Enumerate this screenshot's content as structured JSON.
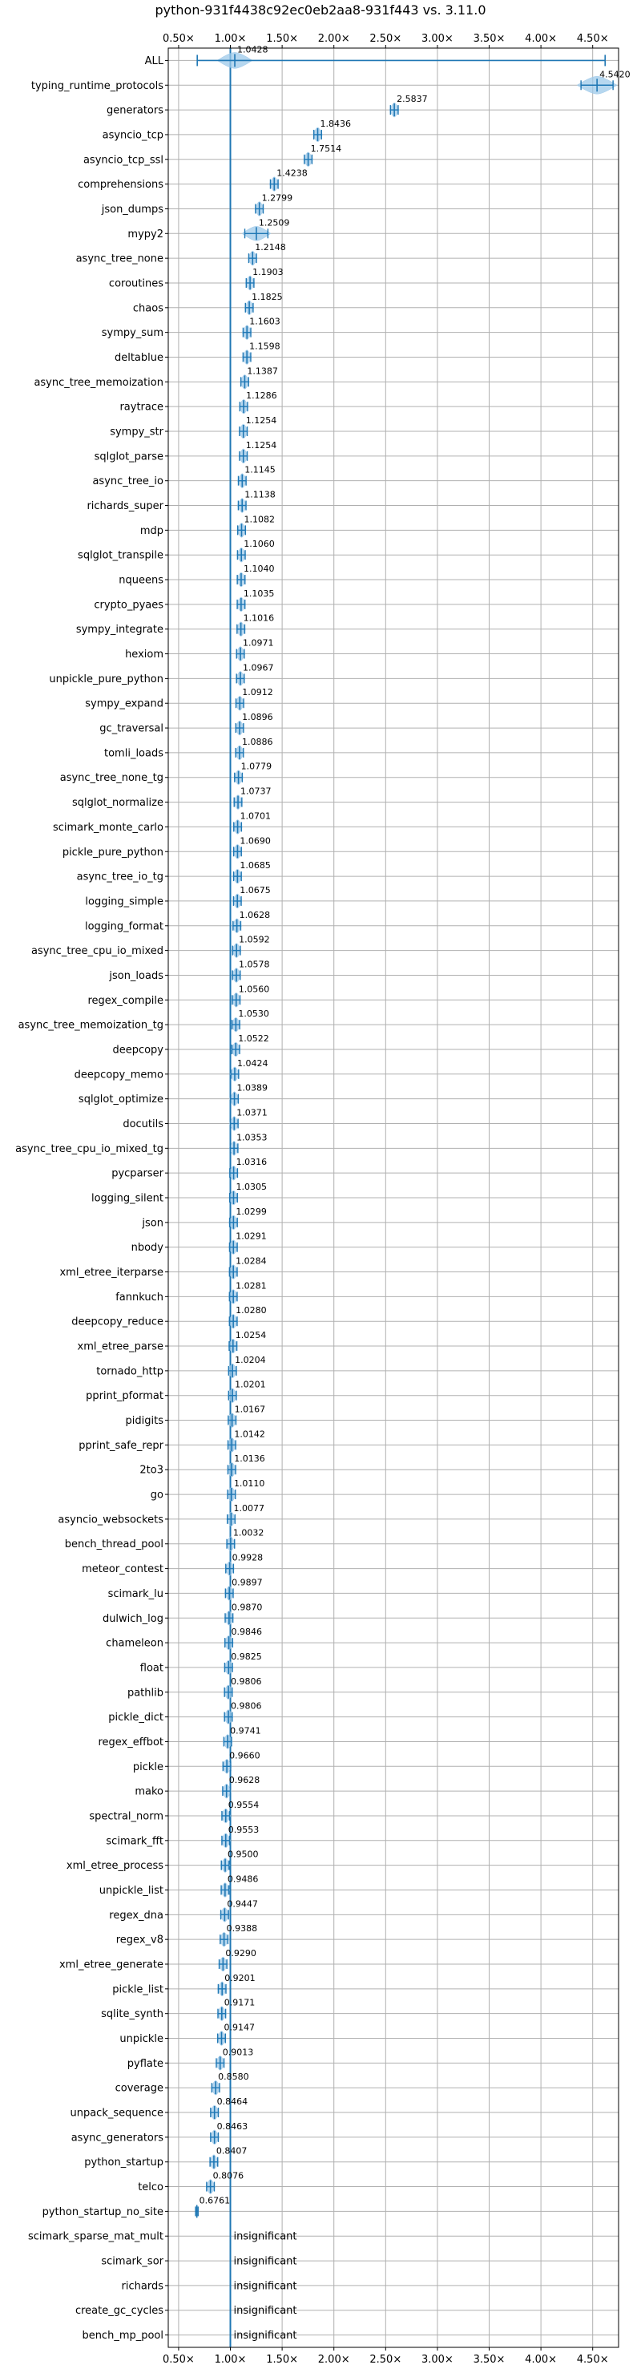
{
  "chart_data": {
    "type": "violin",
    "title": "python-931f4438c92ec0eb2aa8-931f443 vs. 3.11.0",
    "xlabel": "",
    "ylabel": "",
    "xlim": [
      0.4,
      4.75
    ],
    "x_ticks": [
      0.5,
      1.0,
      1.5,
      2.0,
      2.5,
      3.0,
      3.5,
      4.0,
      4.5
    ],
    "x_tick_labels": [
      "0.50×",
      "1.00×",
      "1.50×",
      "2.00×",
      "2.50×",
      "3.00×",
      "3.50×",
      "4.00×",
      "4.50×"
    ],
    "grid": true,
    "reference_line": 1.0,
    "insignificant_label": "insignificant",
    "benchmarks": [
      {
        "name": "ALL",
        "value": 1.0428,
        "label": "1.0428"
      },
      {
        "name": "typing_runtime_protocols",
        "value": 4.542,
        "label": "4.5420"
      },
      {
        "name": "generators",
        "value": 2.5837,
        "label": "2.5837"
      },
      {
        "name": "asyncio_tcp",
        "value": 1.8436,
        "label": "1.8436"
      },
      {
        "name": "asyncio_tcp_ssl",
        "value": 1.7514,
        "label": "1.7514"
      },
      {
        "name": "comprehensions",
        "value": 1.4238,
        "label": "1.4238"
      },
      {
        "name": "json_dumps",
        "value": 1.2799,
        "label": "1.2799"
      },
      {
        "name": "mypy2",
        "value": 1.2509,
        "label": "1.2509"
      },
      {
        "name": "async_tree_none",
        "value": 1.2148,
        "label": "1.2148"
      },
      {
        "name": "coroutines",
        "value": 1.1903,
        "label": "1.1903"
      },
      {
        "name": "chaos",
        "value": 1.1825,
        "label": "1.1825"
      },
      {
        "name": "sympy_sum",
        "value": 1.1603,
        "label": "1.1603"
      },
      {
        "name": "deltablue",
        "value": 1.1598,
        "label": "1.1598"
      },
      {
        "name": "async_tree_memoization",
        "value": 1.1387,
        "label": "1.1387"
      },
      {
        "name": "raytrace",
        "value": 1.1286,
        "label": "1.1286"
      },
      {
        "name": "sympy_str",
        "value": 1.1254,
        "label": "1.1254"
      },
      {
        "name": "sqlglot_parse",
        "value": 1.1254,
        "label": "1.1254"
      },
      {
        "name": "async_tree_io",
        "value": 1.1145,
        "label": "1.1145"
      },
      {
        "name": "richards_super",
        "value": 1.1138,
        "label": "1.1138"
      },
      {
        "name": "mdp",
        "value": 1.1082,
        "label": "1.1082"
      },
      {
        "name": "sqlglot_transpile",
        "value": 1.106,
        "label": "1.1060"
      },
      {
        "name": "nqueens",
        "value": 1.104,
        "label": "1.1040"
      },
      {
        "name": "crypto_pyaes",
        "value": 1.1035,
        "label": "1.1035"
      },
      {
        "name": "sympy_integrate",
        "value": 1.1016,
        "label": "1.1016"
      },
      {
        "name": "hexiom",
        "value": 1.0971,
        "label": "1.0971"
      },
      {
        "name": "unpickle_pure_python",
        "value": 1.0967,
        "label": "1.0967"
      },
      {
        "name": "sympy_expand",
        "value": 1.0912,
        "label": "1.0912"
      },
      {
        "name": "gc_traversal",
        "value": 1.0896,
        "label": "1.0896"
      },
      {
        "name": "tomli_loads",
        "value": 1.0886,
        "label": "1.0886"
      },
      {
        "name": "async_tree_none_tg",
        "value": 1.0779,
        "label": "1.0779"
      },
      {
        "name": "sqlglot_normalize",
        "value": 1.0737,
        "label": "1.0737"
      },
      {
        "name": "scimark_monte_carlo",
        "value": 1.0701,
        "label": "1.0701"
      },
      {
        "name": "pickle_pure_python",
        "value": 1.069,
        "label": "1.0690"
      },
      {
        "name": "async_tree_io_tg",
        "value": 1.0685,
        "label": "1.0685"
      },
      {
        "name": "logging_simple",
        "value": 1.0675,
        "label": "1.0675"
      },
      {
        "name": "logging_format",
        "value": 1.0628,
        "label": "1.0628"
      },
      {
        "name": "async_tree_cpu_io_mixed",
        "value": 1.0592,
        "label": "1.0592"
      },
      {
        "name": "json_loads",
        "value": 1.0578,
        "label": "1.0578"
      },
      {
        "name": "regex_compile",
        "value": 1.056,
        "label": "1.0560"
      },
      {
        "name": "async_tree_memoization_tg",
        "value": 1.053,
        "label": "1.0530"
      },
      {
        "name": "deepcopy",
        "value": 1.0522,
        "label": "1.0522"
      },
      {
        "name": "deepcopy_memo",
        "value": 1.0424,
        "label": "1.0424"
      },
      {
        "name": "sqlglot_optimize",
        "value": 1.0389,
        "label": "1.0389"
      },
      {
        "name": "docutils",
        "value": 1.0371,
        "label": "1.0371"
      },
      {
        "name": "async_tree_cpu_io_mixed_tg",
        "value": 1.0353,
        "label": "1.0353"
      },
      {
        "name": "pycparser",
        "value": 1.0316,
        "label": "1.0316"
      },
      {
        "name": "logging_silent",
        "value": 1.0305,
        "label": "1.0305"
      },
      {
        "name": "json",
        "value": 1.0299,
        "label": "1.0299"
      },
      {
        "name": "nbody",
        "value": 1.0291,
        "label": "1.0291"
      },
      {
        "name": "xml_etree_iterparse",
        "value": 1.0284,
        "label": "1.0284"
      },
      {
        "name": "fannkuch",
        "value": 1.0281,
        "label": "1.0281"
      },
      {
        "name": "deepcopy_reduce",
        "value": 1.028,
        "label": "1.0280"
      },
      {
        "name": "xml_etree_parse",
        "value": 1.0254,
        "label": "1.0254"
      },
      {
        "name": "tornado_http",
        "value": 1.0204,
        "label": "1.0204"
      },
      {
        "name": "pprint_pformat",
        "value": 1.0201,
        "label": "1.0201"
      },
      {
        "name": "pidigits",
        "value": 1.0167,
        "label": "1.0167"
      },
      {
        "name": "pprint_safe_repr",
        "value": 1.0142,
        "label": "1.0142"
      },
      {
        "name": "2to3",
        "value": 1.0136,
        "label": "1.0136"
      },
      {
        "name": "go",
        "value": 1.011,
        "label": "1.0110"
      },
      {
        "name": "asyncio_websockets",
        "value": 1.0077,
        "label": "1.0077"
      },
      {
        "name": "bench_thread_pool",
        "value": 1.0032,
        "label": "1.0032"
      },
      {
        "name": "meteor_contest",
        "value": 0.9928,
        "label": "0.9928"
      },
      {
        "name": "scimark_lu",
        "value": 0.9897,
        "label": "0.9897"
      },
      {
        "name": "dulwich_log",
        "value": 0.987,
        "label": "0.9870"
      },
      {
        "name": "chameleon",
        "value": 0.9846,
        "label": "0.9846"
      },
      {
        "name": "float",
        "value": 0.9825,
        "label": "0.9825"
      },
      {
        "name": "pathlib",
        "value": 0.9806,
        "label": "0.9806"
      },
      {
        "name": "pickle_dict",
        "value": 0.9806,
        "label": "0.9806"
      },
      {
        "name": "regex_effbot",
        "value": 0.9741,
        "label": "0.9741"
      },
      {
        "name": "pickle",
        "value": 0.966,
        "label": "0.9660"
      },
      {
        "name": "mako",
        "value": 0.9628,
        "label": "0.9628"
      },
      {
        "name": "spectral_norm",
        "value": 0.9554,
        "label": "0.9554"
      },
      {
        "name": "scimark_fft",
        "value": 0.9553,
        "label": "0.9553"
      },
      {
        "name": "xml_etree_process",
        "value": 0.95,
        "label": "0.9500"
      },
      {
        "name": "unpickle_list",
        "value": 0.9486,
        "label": "0.9486"
      },
      {
        "name": "regex_dna",
        "value": 0.9447,
        "label": "0.9447"
      },
      {
        "name": "regex_v8",
        "value": 0.9388,
        "label": "0.9388"
      },
      {
        "name": "xml_etree_generate",
        "value": 0.929,
        "label": "0.9290"
      },
      {
        "name": "pickle_list",
        "value": 0.9201,
        "label": "0.9201"
      },
      {
        "name": "sqlite_synth",
        "value": 0.9171,
        "label": "0.9171"
      },
      {
        "name": "unpickle",
        "value": 0.9147,
        "label": "0.9147"
      },
      {
        "name": "pyflate",
        "value": 0.9013,
        "label": "0.9013"
      },
      {
        "name": "coverage",
        "value": 0.858,
        "label": "0.8580"
      },
      {
        "name": "unpack_sequence",
        "value": 0.8464,
        "label": "0.8464"
      },
      {
        "name": "async_generators",
        "value": 0.8463,
        "label": "0.8463"
      },
      {
        "name": "python_startup",
        "value": 0.8407,
        "label": "0.8407"
      },
      {
        "name": "telco",
        "value": 0.8076,
        "label": "0.8076"
      },
      {
        "name": "python_startup_no_site",
        "value": 0.6761,
        "label": "0.6761"
      },
      {
        "name": "scimark_sparse_mat_mult",
        "value": null,
        "label": "insignificant"
      },
      {
        "name": "scimark_sor",
        "value": null,
        "label": "insignificant"
      },
      {
        "name": "richards",
        "value": null,
        "label": "insignificant"
      },
      {
        "name": "create_gc_cycles",
        "value": null,
        "label": "insignificant"
      },
      {
        "name": "bench_mp_pool",
        "value": null,
        "label": "insignificant"
      }
    ],
    "colors": {
      "violin_fill": "#9ec9ea",
      "violin_edge": "#1f77b4",
      "reference_line": "#1f77b4",
      "grid": "#b0b0b0"
    }
  }
}
